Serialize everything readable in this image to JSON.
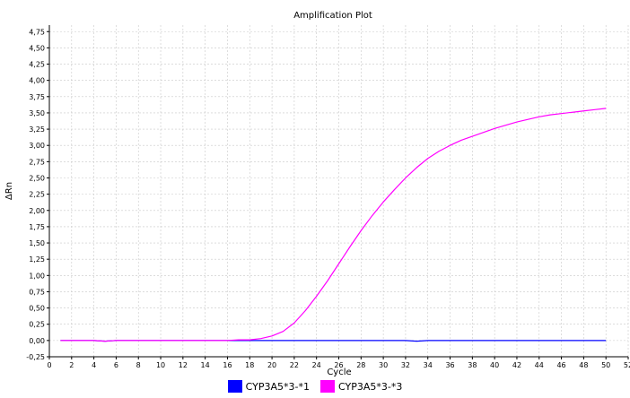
{
  "chart_data": {
    "type": "line",
    "title": "Amplification Plot",
    "xlabel": "Cycle",
    "ylabel": "ΔRn",
    "xlim": [
      0,
      52
    ],
    "ylim": [
      -0.25,
      4.85
    ],
    "x_ticks": [
      0,
      2,
      4,
      6,
      8,
      10,
      12,
      14,
      16,
      18,
      20,
      22,
      24,
      26,
      28,
      30,
      32,
      34,
      36,
      38,
      40,
      42,
      44,
      46,
      48,
      50,
      52
    ],
    "y_ticks": [
      -0.25,
      0,
      0.25,
      0.5,
      0.75,
      1,
      1.25,
      1.5,
      1.75,
      2,
      2.25,
      2.5,
      2.75,
      3,
      3.25,
      3.5,
      3.75,
      4,
      4.25,
      4.5,
      4.75
    ],
    "y_tick_labels": [
      "-0,25",
      "0,00",
      "0,25",
      "0,50",
      "0,75",
      "1,00",
      "1,25",
      "1,50",
      "1,75",
      "2,00",
      "2,25",
      "2,50",
      "2,75",
      "3,00",
      "3,25",
      "3,50",
      "3,75",
      "4,00",
      "4,25",
      "4,50",
      "4,75"
    ],
    "grid": true,
    "legend_position": "bottom-center",
    "x": [
      1,
      2,
      3,
      4,
      5,
      6,
      7,
      8,
      9,
      10,
      11,
      12,
      13,
      14,
      15,
      16,
      17,
      18,
      19,
      20,
      21,
      22,
      23,
      24,
      25,
      26,
      27,
      28,
      29,
      30,
      31,
      32,
      33,
      34,
      35,
      36,
      37,
      38,
      39,
      40,
      41,
      42,
      43,
      44,
      45,
      46,
      47,
      48,
      49,
      50
    ],
    "series": [
      {
        "name": "CYP3A5*3-*1",
        "color": "#0000ff",
        "values": [
          0,
          0,
          0,
          0,
          -0.01,
          0,
          0,
          0,
          0,
          0,
          0,
          0,
          0,
          0,
          0,
          0,
          0,
          0,
          0,
          0,
          0,
          0,
          0,
          0,
          0,
          0,
          0,
          0,
          0,
          0,
          0,
          0,
          -0.01,
          0,
          0,
          0,
          0,
          0,
          0,
          0,
          0,
          0,
          0,
          0,
          0,
          0,
          0,
          0,
          0,
          0
        ]
      },
      {
        "name": "CYP3A5*3-*3",
        "color": "#ff00ff",
        "values": [
          0,
          0,
          0,
          0,
          -0.01,
          0,
          0,
          0,
          0,
          0,
          0,
          0,
          0,
          0,
          0,
          0,
          0.01,
          0.01,
          0.03,
          0.07,
          0.14,
          0.27,
          0.46,
          0.68,
          0.92,
          1.18,
          1.44,
          1.69,
          1.92,
          2.13,
          2.32,
          2.5,
          2.66,
          2.8,
          2.91,
          3.0,
          3.08,
          3.14,
          3.2,
          3.26,
          3.31,
          3.36,
          3.4,
          3.44,
          3.47,
          3.49,
          3.51,
          3.53,
          3.55,
          3.57
        ]
      }
    ]
  }
}
